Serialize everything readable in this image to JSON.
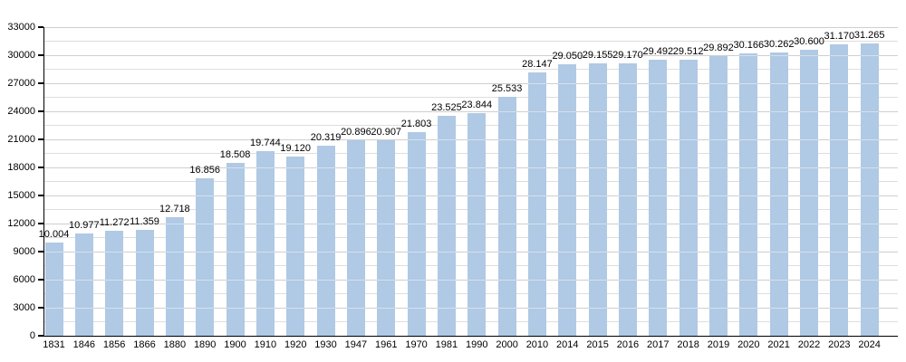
{
  "chart_data": {
    "type": "bar",
    "title": "",
    "xlabel": "",
    "ylabel": "",
    "categories": [
      "1831",
      "1846",
      "1856",
      "1866",
      "1880",
      "1890",
      "1900",
      "1910",
      "1920",
      "1930",
      "1947",
      "1961",
      "1970",
      "1981",
      "1990",
      "2000",
      "2010",
      "2014",
      "2015",
      "2016",
      "2017",
      "2018",
      "2019",
      "2020",
      "2021",
      "2022",
      "2023",
      "2024"
    ],
    "values": [
      10004,
      10977,
      11272,
      11359,
      12718,
      16856,
      18508,
      19744,
      19120,
      20319,
      20896,
      20907,
      21803,
      23525,
      23844,
      25533,
      28147,
      29050,
      29155,
      29170,
      29492,
      29512,
      29892,
      30166,
      30262,
      30600,
      31170,
      31265
    ],
    "value_labels": [
      "10.004",
      "10.977",
      "11.272",
      "11.359",
      "12.718",
      "16.856",
      "18.508",
      "19.744",
      "19.120",
      "20.319",
      "20.896",
      "20.907",
      "21.803",
      "23.525",
      "23.844",
      "25.533",
      "28.147",
      "29.050",
      "29.155",
      "29.170",
      "29.492",
      "29.512",
      "29.892",
      "30.166",
      "30.262",
      "30.600",
      "31.170",
      "31.265"
    ],
    "y_tick_labels": [
      "0",
      "3000",
      "6000",
      "9000",
      "12000",
      "15000",
      "18000",
      "21000",
      "24000",
      "27000",
      "30000",
      "33000"
    ],
    "ylim": [
      0,
      33000
    ],
    "y_major_step": 3000,
    "y_minor_step": 1500,
    "grid": true,
    "legend": "none",
    "colors": {
      "bar_fill": "#b0c9e4",
      "major_grid": "#a8a8a8",
      "minor_grid": "#dedede",
      "axis": "#000000",
      "text": "#000000",
      "bar_stripe": "rgba(255,255,255,0.45)"
    }
  }
}
